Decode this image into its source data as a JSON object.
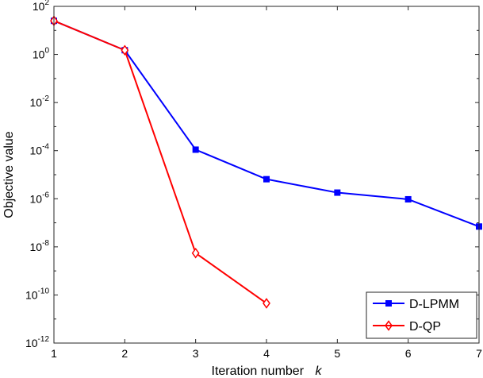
{
  "chart_data": {
    "type": "line",
    "xlabel": "Iteration number",
    "xlabel_var": "k",
    "ylabel": "Objective value",
    "yscale": "log",
    "xlim": [
      1,
      7
    ],
    "ylim_exp": [
      -12,
      2
    ],
    "x_ticks": [
      {
        "value": 1,
        "label": "1"
      },
      {
        "value": 2,
        "label": "2"
      },
      {
        "value": 3,
        "label": "3"
      },
      {
        "value": 4,
        "label": "4"
      },
      {
        "value": 5,
        "label": "5"
      },
      {
        "value": 6,
        "label": "6"
      },
      {
        "value": 7,
        "label": "7"
      }
    ],
    "y_ticks": [
      {
        "exp": 2,
        "base": "10",
        "sup": "2"
      },
      {
        "exp": 0,
        "base": "10",
        "sup": "0"
      },
      {
        "exp": -2,
        "base": "10",
        "sup": "-2"
      },
      {
        "exp": -4,
        "base": "10",
        "sup": "-4"
      },
      {
        "exp": -6,
        "base": "10",
        "sup": "-6"
      },
      {
        "exp": -8,
        "base": "10",
        "sup": "-8"
      },
      {
        "exp": -10,
        "base": "10",
        "sup": "-10"
      },
      {
        "exp": -12,
        "base": "10",
        "sup": "-12"
      }
    ],
    "legend_position": "bottom-right",
    "grid": false,
    "series": [
      {
        "name": "D-LPMM",
        "color": "#0000ff",
        "marker": "square",
        "x": [
          1,
          2,
          3,
          4,
          5,
          6,
          7
        ],
        "y": [
          25,
          1.5,
          0.00011,
          6.5e-06,
          1.8e-06,
          9.5e-07,
          7e-08
        ]
      },
      {
        "name": "D-QP",
        "color": "#ff0000",
        "marker": "diamond",
        "x": [
          1,
          2,
          3,
          4
        ],
        "y": [
          25,
          1.5,
          5.5e-09,
          4.5e-11
        ]
      }
    ]
  }
}
